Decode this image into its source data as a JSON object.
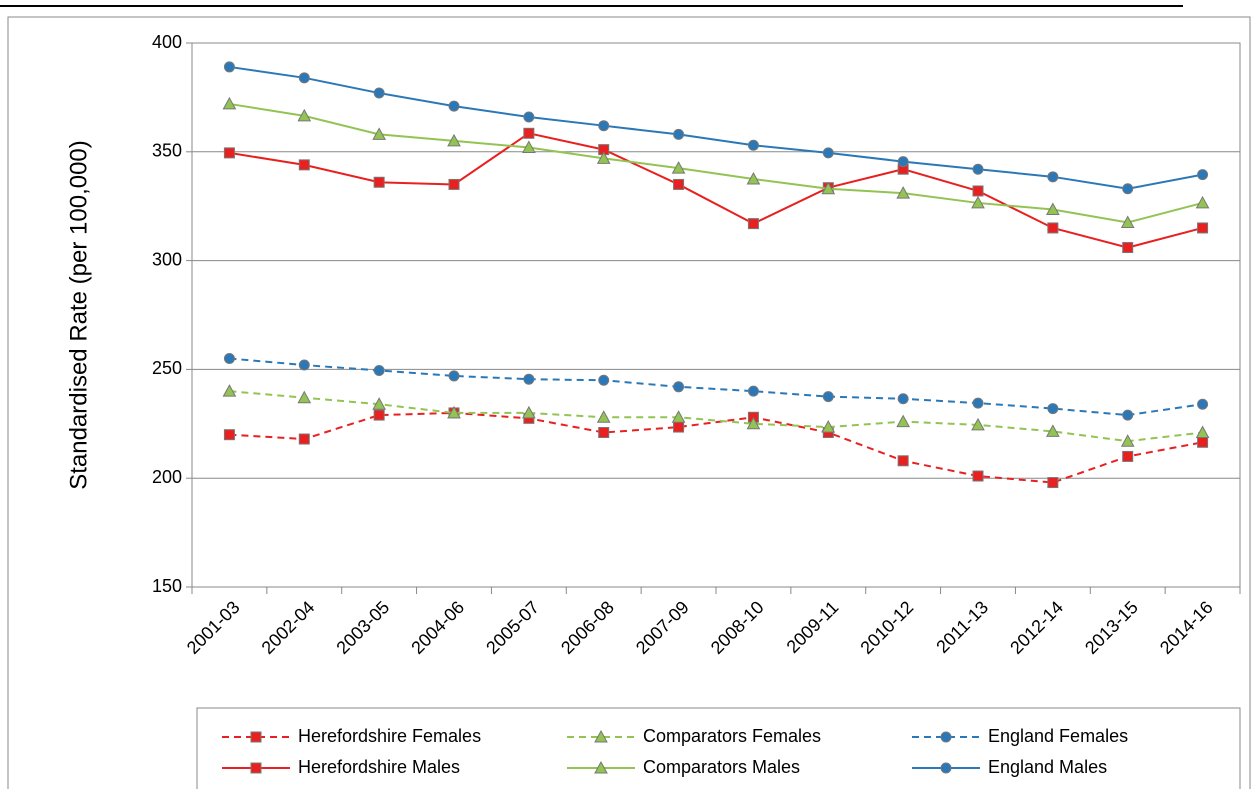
{
  "chart_data": {
    "type": "line",
    "y_label": "Standardised Rate (per 100,000)",
    "categories": [
      "2001-03",
      "2002-04",
      "2003-05",
      "2004-06",
      "2005-07",
      "2006-08",
      "2007-09",
      "2008-10",
      "2009-11",
      "2010-12",
      "2011-13",
      "2012-14",
      "2013-15",
      "2014-16"
    ],
    "ylim": [
      150,
      400
    ],
    "yticks": [
      150,
      200,
      250,
      300,
      350,
      400
    ],
    "grid": true,
    "legend": "bottom",
    "series": [
      {
        "name": "Herefordshire Females",
        "color": "#e8201f",
        "marker": "square",
        "line_style": "dashed",
        "values": [
          220,
          218,
          229,
          230,
          227.5,
          221,
          223.5,
          228,
          221,
          208,
          201,
          198,
          210,
          216.5
        ]
      },
      {
        "name": "Comparators Females",
        "color": "#92c353",
        "marker": "triangle",
        "line_style": "dashed",
        "values": [
          240,
          237,
          234,
          230,
          230,
          228,
          228,
          225,
          223.5,
          226,
          224.5,
          221.5,
          217,
          221
        ]
      },
      {
        "name": "England Females",
        "color": "#2a78b8",
        "marker": "circle",
        "line_style": "dashed",
        "values": [
          255,
          252,
          249.5,
          247,
          245.5,
          245,
          242,
          240,
          237.5,
          236.5,
          234.5,
          232,
          229,
          234
        ]
      },
      {
        "name": "Herefordshire Males",
        "color": "#e8201f",
        "marker": "square",
        "line_style": "solid",
        "values": [
          349.5,
          344,
          336,
          335,
          358.5,
          351,
          335,
          317,
          333.5,
          342,
          332,
          315,
          306,
          315
        ]
      },
      {
        "name": "Comparators Males",
        "color": "#92c353",
        "marker": "triangle",
        "line_style": "solid",
        "values": [
          372,
          366.5,
          358,
          355,
          352,
          347,
          342.5,
          337.5,
          333,
          331,
          326.5,
          323.5,
          317.5,
          326.5
        ]
      },
      {
        "name": "England Males",
        "color": "#2a78b8",
        "marker": "circle",
        "line_style": "solid",
        "values": [
          389,
          384,
          377,
          371,
          366,
          362,
          358,
          353,
          349.5,
          345.5,
          342,
          338.5,
          333,
          339.5
        ]
      }
    ]
  }
}
